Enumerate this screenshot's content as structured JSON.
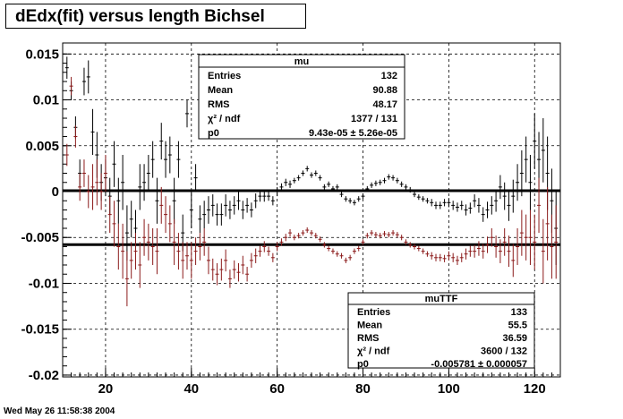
{
  "title": "dEdx(fit) versus length Bichsel",
  "footer": "Wed May 26 11:58:38 2004",
  "chart_data": {
    "type": "scatter",
    "title": "dEdx(fit) versus length Bichsel",
    "xlabel": "",
    "ylabel": "",
    "xlim": [
      10,
      126
    ],
    "ylim": [
      -0.0202,
      0.0162
    ],
    "grid": true,
    "x_ticks": [
      20,
      40,
      60,
      80,
      100,
      120
    ],
    "y_ticks": [
      0.015,
      0.01,
      0.005,
      0,
      -0.005,
      -0.01,
      -0.015,
      -0.02
    ],
    "y_tick_labels": [
      "0.015",
      "0.01",
      "0.005",
      "0",
      "-0.005",
      "-0.01",
      "-0.015",
      "-0.02"
    ],
    "fit_lines": [
      {
        "name": "mu p0",
        "y": 9.43e-05
      },
      {
        "name": "muTTF p0",
        "y": -0.005781
      }
    ],
    "series": [
      {
        "name": "mu",
        "color": "#000000",
        "x": [
          11,
          12,
          13,
          14,
          15,
          16,
          17,
          18,
          19,
          20,
          21,
          22,
          23,
          24,
          25,
          26,
          27,
          28,
          29,
          30,
          31,
          32,
          33,
          34,
          35,
          36,
          37,
          38,
          39,
          40,
          41,
          42,
          43,
          44,
          45,
          46,
          47,
          48,
          49,
          50,
          51,
          52,
          53,
          54,
          55,
          56,
          57,
          58,
          59,
          60,
          61,
          62,
          63,
          64,
          65,
          66,
          67,
          68,
          69,
          70,
          71,
          72,
          73,
          74,
          75,
          76,
          77,
          78,
          79,
          80,
          81,
          82,
          83,
          84,
          85,
          86,
          87,
          88,
          89,
          90,
          91,
          92,
          93,
          94,
          95,
          96,
          97,
          98,
          99,
          100,
          101,
          102,
          103,
          104,
          105,
          106,
          107,
          108,
          109,
          110,
          111,
          112,
          113,
          114,
          115,
          116,
          117,
          118,
          119,
          120,
          121,
          122,
          123,
          124,
          125
        ],
        "y": [
          0.0135,
          0.011,
          0.007,
          0.002,
          0.012,
          0.0125,
          0.0065,
          0.004,
          0.001,
          0.0015,
          -0.0005,
          0.003,
          -0.001,
          0.001,
          -0.0045,
          -0.003,
          -0.004,
          0.0005,
          0.001,
          0.002,
          0.0035,
          -0.001,
          0.0055,
          0.0035,
          0.004,
          -0.001,
          0.0035,
          -0.0045,
          0.0085,
          -0.002,
          0.0015,
          -0.003,
          -0.0025,
          -0.002,
          -0.0015,
          -0.0025,
          -0.0025,
          -0.0015,
          -0.002,
          -0.0015,
          -0.001,
          -0.002,
          -0.0015,
          -0.002,
          -0.001,
          -0.0005,
          -0.0005,
          -0.0005,
          -0.001,
          0.0,
          0.0005,
          0.001,
          0.0008,
          0.0012,
          0.0015,
          0.002,
          0.0025,
          0.0018,
          0.002,
          0.0015,
          0.0005,
          0.0008,
          0.0003,
          0.0005,
          -0.0003,
          -0.0008,
          -0.001,
          -0.0012,
          -0.0008,
          -0.0005,
          0.0003,
          0.0007,
          0.0009,
          0.001,
          0.0012,
          0.0016,
          0.0015,
          0.0012,
          0.0008,
          0.0005,
          0.0002,
          -0.0003,
          -0.0006,
          -0.0008,
          -0.001,
          -0.0012,
          -0.0015,
          -0.0015,
          -0.0012,
          -0.0012,
          -0.0015,
          -0.0017,
          -0.0015,
          -0.002,
          -0.0018,
          -0.001,
          -0.0015,
          -0.0025,
          -0.002,
          -0.0015,
          -0.001,
          0.0005,
          -0.0005,
          -0.0015,
          -0.0005,
          0.001,
          0.002,
          0.0035,
          0.001,
          0.0055,
          0.0035,
          0.0045,
          0.002,
          -0.001,
          -0.004
        ],
        "err": [
          0.0012,
          0.001,
          0.0012,
          0.0015,
          0.0015,
          0.0018,
          0.0025,
          0.0025,
          0.002,
          0.002,
          0.002,
          0.0025,
          0.0025,
          0.003,
          0.003,
          0.002,
          0.002,
          0.0025,
          0.002,
          0.002,
          0.002,
          0.0025,
          0.002,
          0.002,
          0.002,
          0.0025,
          0.002,
          0.002,
          0.0015,
          0.002,
          0.0015,
          0.0015,
          0.0015,
          0.0015,
          0.0012,
          0.0012,
          0.0012,
          0.0012,
          0.001,
          0.001,
          0.001,
          0.001,
          0.0008,
          0.0008,
          0.0008,
          0.0006,
          0.0006,
          0.0005,
          0.0005,
          0.0005,
          0.0004,
          0.0004,
          0.0004,
          0.0003,
          0.0003,
          0.0003,
          0.0003,
          0.0003,
          0.0003,
          0.0003,
          0.0003,
          0.0003,
          0.0003,
          0.0003,
          0.0003,
          0.0003,
          0.0003,
          0.0003,
          0.0003,
          0.0003,
          0.0003,
          0.0003,
          0.0003,
          0.0003,
          0.0003,
          0.0003,
          0.0003,
          0.0003,
          0.0003,
          0.0003,
          0.0003,
          0.0003,
          0.0003,
          0.0003,
          0.0003,
          0.0004,
          0.0004,
          0.0004,
          0.0004,
          0.0005,
          0.0005,
          0.0005,
          0.0005,
          0.0006,
          0.0006,
          0.0007,
          0.0008,
          0.0008,
          0.0009,
          0.001,
          0.0012,
          0.0013,
          0.0015,
          0.0017,
          0.0018,
          0.002,
          0.0025,
          0.0025,
          0.003,
          0.003,
          0.003,
          0.0035,
          0.004,
          0.0035,
          0.004
        ]
      },
      {
        "name": "muTTF",
        "color": "#8b1a1a",
        "x": [
          11,
          12,
          13,
          14,
          15,
          16,
          17,
          18,
          19,
          20,
          21,
          22,
          23,
          24,
          25,
          26,
          27,
          28,
          29,
          30,
          31,
          32,
          33,
          34,
          35,
          36,
          37,
          38,
          39,
          40,
          41,
          42,
          43,
          44,
          45,
          46,
          47,
          48,
          49,
          50,
          51,
          52,
          53,
          54,
          55,
          56,
          57,
          58,
          59,
          60,
          61,
          62,
          63,
          64,
          65,
          66,
          67,
          68,
          69,
          70,
          71,
          72,
          73,
          74,
          75,
          76,
          77,
          78,
          79,
          80,
          81,
          82,
          83,
          84,
          85,
          86,
          87,
          88,
          89,
          90,
          91,
          92,
          93,
          94,
          95,
          96,
          97,
          98,
          99,
          100,
          101,
          102,
          103,
          104,
          105,
          106,
          107,
          108,
          109,
          110,
          111,
          112,
          113,
          114,
          115,
          116,
          117,
          118,
          119,
          120,
          121,
          122,
          123,
          124,
          125
        ],
        "y": [
          0.004,
          0.0115,
          0.006,
          0.0005,
          0.002,
          0.0,
          0.0005,
          0.001,
          0.0,
          0.002,
          -0.0025,
          -0.0035,
          -0.006,
          -0.0065,
          -0.0095,
          -0.0075,
          -0.0065,
          -0.008,
          -0.005,
          -0.0055,
          -0.006,
          -0.0065,
          -0.0015,
          -0.0025,
          -0.0035,
          -0.0055,
          -0.0065,
          -0.0075,
          -0.007,
          -0.0075,
          -0.0065,
          -0.006,
          -0.0055,
          -0.0075,
          -0.0085,
          -0.009,
          -0.0085,
          -0.0075,
          -0.0095,
          -0.0085,
          -0.0088,
          -0.008,
          -0.009,
          -0.0075,
          -0.007,
          -0.0065,
          -0.006,
          -0.0065,
          -0.0072,
          -0.006,
          -0.0055,
          -0.005,
          -0.0045,
          -0.005,
          -0.0048,
          -0.0045,
          -0.0042,
          -0.0045,
          -0.0048,
          -0.0052,
          -0.0058,
          -0.0062,
          -0.0065,
          -0.0068,
          -0.007,
          -0.0075,
          -0.0072,
          -0.0065,
          -0.0062,
          -0.0055,
          -0.0048,
          -0.0045,
          -0.0047,
          -0.0048,
          -0.0046,
          -0.0047,
          -0.0045,
          -0.0047,
          -0.005,
          -0.0055,
          -0.0058,
          -0.006,
          -0.0062,
          -0.0065,
          -0.0068,
          -0.007,
          -0.0072,
          -0.0072,
          -0.0073,
          -0.007,
          -0.0072,
          -0.0075,
          -0.0072,
          -0.0068,
          -0.0065,
          -0.0065,
          -0.0062,
          -0.0065,
          -0.0058,
          -0.005,
          -0.006,
          -0.0065,
          -0.0055,
          -0.0065,
          -0.0075,
          -0.006,
          -0.0045,
          -0.005,
          -0.005,
          -0.0055,
          -0.0015,
          -0.0065,
          -0.0035,
          -0.006,
          -0.0055
        ],
        "err": [
          0.0012,
          0.001,
          0.0012,
          0.0015,
          0.0015,
          0.0018,
          0.0025,
          0.0025,
          0.002,
          0.002,
          0.002,
          0.0025,
          0.0025,
          0.003,
          0.003,
          0.002,
          0.002,
          0.0025,
          0.002,
          0.002,
          0.002,
          0.0025,
          0.002,
          0.002,
          0.002,
          0.0025,
          0.002,
          0.002,
          0.0015,
          0.002,
          0.0015,
          0.0015,
          0.0015,
          0.0015,
          0.0012,
          0.0012,
          0.0012,
          0.0012,
          0.001,
          0.001,
          0.001,
          0.001,
          0.0008,
          0.0008,
          0.0008,
          0.0006,
          0.0006,
          0.0005,
          0.0005,
          0.0005,
          0.0004,
          0.0004,
          0.0004,
          0.0003,
          0.0003,
          0.0003,
          0.0003,
          0.0003,
          0.0003,
          0.0003,
          0.0003,
          0.0003,
          0.0003,
          0.0003,
          0.0003,
          0.0003,
          0.0003,
          0.0003,
          0.0003,
          0.0003,
          0.0003,
          0.0003,
          0.0003,
          0.0003,
          0.0003,
          0.0003,
          0.0003,
          0.0003,
          0.0003,
          0.0003,
          0.0003,
          0.0003,
          0.0003,
          0.0003,
          0.0003,
          0.0004,
          0.0004,
          0.0004,
          0.0004,
          0.0005,
          0.0005,
          0.0005,
          0.0005,
          0.0006,
          0.0006,
          0.0007,
          0.0008,
          0.0008,
          0.0009,
          0.001,
          0.0012,
          0.0013,
          0.0015,
          0.0017,
          0.0018,
          0.002,
          0.0025,
          0.0025,
          0.003,
          0.003,
          0.003,
          0.0035,
          0.004,
          0.0035,
          0.004
        ]
      }
    ]
  },
  "stats_mu": {
    "name": "mu",
    "rows": [
      {
        "label": "Entries",
        "value": "132"
      },
      {
        "label": "Mean",
        "value": "90.88"
      },
      {
        "label": "RMS",
        "value": "48.17"
      },
      {
        "label": "χ² / ndf",
        "value": "1377 / 131"
      },
      {
        "label": "p0",
        "value": "9.43e-05 ± 5.26e-05"
      }
    ]
  },
  "stats_muTTF": {
    "name": "muTTF",
    "rows": [
      {
        "label": "Entries",
        "value": "133"
      },
      {
        "label": "Mean",
        "value": "55.5"
      },
      {
        "label": "RMS",
        "value": "36.59"
      },
      {
        "label": "χ² / ndf",
        "value": "3600 / 132"
      },
      {
        "label": "p0",
        "value": "-0.005781 ± 0.000057"
      }
    ]
  }
}
